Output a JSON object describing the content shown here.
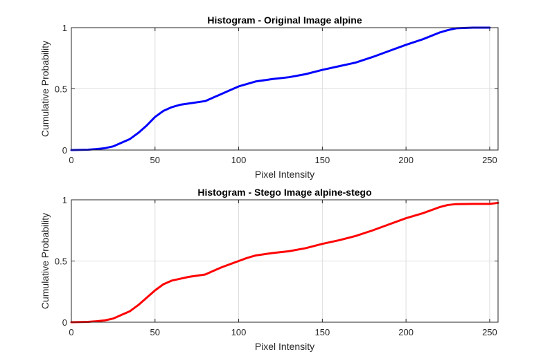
{
  "chart_data": [
    {
      "type": "line",
      "title": "Histogram - Original Image alpine",
      "xlabel": "Pixel Intensity",
      "ylabel": "Cumulative Probability",
      "xlim": [
        0,
        255
      ],
      "ylim": [
        0,
        1
      ],
      "xticks": [
        "0",
        "50",
        "100",
        "150",
        "200",
        "250"
      ],
      "yticks": [
        "0",
        "0.5",
        "1"
      ],
      "grid": true,
      "line_color": "#0000ff",
      "series": [
        {
          "x": [
            0,
            10,
            15,
            20,
            25,
            30,
            35,
            40,
            45,
            50,
            55,
            60,
            65,
            70,
            80,
            85,
            90,
            95,
            100,
            105,
            110,
            120,
            130,
            140,
            150,
            160,
            170,
            180,
            190,
            200,
            210,
            220,
            225,
            230,
            240,
            250
          ],
          "values": [
            0,
            0.003,
            0.008,
            0.015,
            0.03,
            0.06,
            0.09,
            0.14,
            0.2,
            0.27,
            0.32,
            0.35,
            0.37,
            0.38,
            0.4,
            0.43,
            0.46,
            0.49,
            0.52,
            0.54,
            0.56,
            0.58,
            0.595,
            0.62,
            0.655,
            0.685,
            0.715,
            0.76,
            0.81,
            0.86,
            0.905,
            0.96,
            0.98,
            0.995,
            1.0,
            1.0
          ]
        }
      ]
    },
    {
      "type": "line",
      "title": "Histogram - Stego Image alpine-stego",
      "xlabel": "Pixel Intensity",
      "ylabel": "Cumulative Probability",
      "xlim": [
        0,
        255
      ],
      "ylim": [
        0,
        1
      ],
      "xticks": [
        "0",
        "50",
        "100",
        "150",
        "200",
        "250"
      ],
      "yticks": [
        "0",
        "0.5",
        "1"
      ],
      "grid": true,
      "line_color": "#ff0000",
      "series": [
        {
          "x": [
            0,
            10,
            15,
            20,
            25,
            30,
            35,
            40,
            45,
            50,
            55,
            60,
            65,
            70,
            80,
            85,
            90,
            95,
            100,
            105,
            110,
            120,
            130,
            140,
            150,
            160,
            170,
            180,
            190,
            200,
            210,
            220,
            225,
            230,
            240,
            250,
            255
          ],
          "values": [
            0,
            0.003,
            0.008,
            0.015,
            0.03,
            0.06,
            0.09,
            0.14,
            0.2,
            0.26,
            0.31,
            0.34,
            0.355,
            0.37,
            0.39,
            0.42,
            0.45,
            0.475,
            0.5,
            0.525,
            0.545,
            0.565,
            0.58,
            0.605,
            0.64,
            0.67,
            0.705,
            0.75,
            0.8,
            0.85,
            0.89,
            0.94,
            0.958,
            0.965,
            0.967,
            0.967,
            0.975
          ]
        }
      ]
    }
  ]
}
